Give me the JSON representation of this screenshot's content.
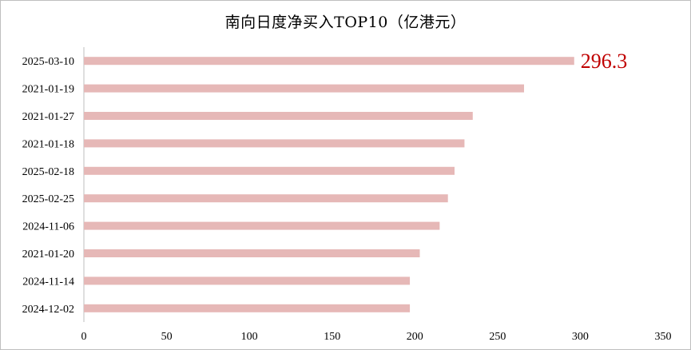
{
  "chart_data": {
    "type": "bar",
    "orientation": "horizontal",
    "title": "南向日度净买入TOP10（亿港元）",
    "xlabel": "",
    "ylabel": "",
    "categories": [
      "2025-03-10",
      "2021-01-19",
      "2021-01-27",
      "2021-01-18",
      "2025-02-18",
      "2025-02-25",
      "2024-11-06",
      "2021-01-20",
      "2024-11-14",
      "2024-12-02"
    ],
    "values": [
      296.3,
      266,
      235,
      230,
      224,
      220,
      215,
      203,
      197,
      197
    ],
    "xlim": [
      0,
      350
    ],
    "xticks": [
      "0",
      "50",
      "100",
      "150",
      "200",
      "250",
      "300",
      "350"
    ],
    "grid": false,
    "legend": "none",
    "bar_color": "#e6b8b7",
    "annotations": [
      {
        "category": "2025-03-10",
        "text": "296.3",
        "color": "#c00000"
      }
    ]
  }
}
